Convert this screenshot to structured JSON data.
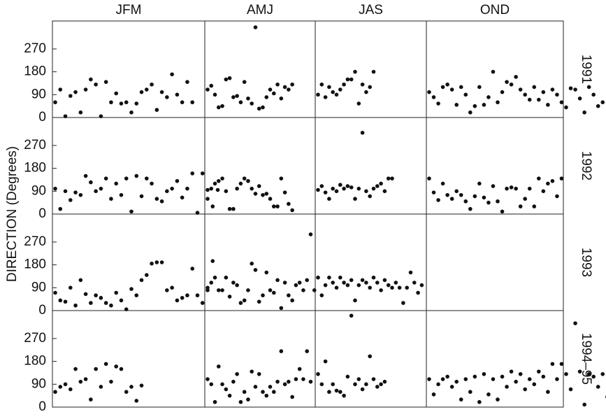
{
  "chart_data": {
    "type": "scatter",
    "columns": [
      "JFM",
      "AMJ",
      "JAS",
      "OND"
    ],
    "rows": [
      "1991",
      "1992",
      "1993",
      "1994–95"
    ],
    "ylabel": "DIRECTION (Degrees)",
    "ylim": [
      0,
      380
    ],
    "yticks": [
      0,
      90,
      180,
      270
    ],
    "color": "#111111",
    "panels": [
      [
        {
          "values": [
            60,
            110,
            5,
            85,
            100,
            20,
            110,
            150,
            130,
            5,
            140,
            60,
            95,
            55,
            60,
            20,
            55,
            100,
            110,
            130,
            30,
            100,
            80,
            170,
            90,
            60,
            140,
            60
          ]
        },
        {
          "values": [
            110,
            125,
            90,
            40,
            45,
            150,
            155,
            80,
            85,
            60,
            140,
            75,
            55,
            355,
            35,
            40,
            80,
            110,
            95,
            130,
            75,
            120,
            110,
            130
          ]
        },
        {
          "values": [
            90,
            130,
            80,
            120,
            100,
            90,
            110,
            130,
            150,
            150,
            180,
            55,
            130,
            100,
            120,
            180
          ]
        },
        {
          "values": [
            100,
            80,
            55,
            120,
            130,
            110,
            50,
            120,
            90,
            20,
            45,
            120,
            50,
            80,
            180,
            60,
            100,
            140,
            130,
            160,
            110,
            90,
            70,
            120,
            70,
            100,
            50,
            110,
            90,
            60,
            40,
            115,
            110,
            75,
            20,
            120,
            90,
            45,
            60
          ]
        }
      ],
      [
        {
          "values": [
            100,
            20,
            90,
            55,
            85,
            75,
            150,
            125,
            90,
            100,
            140,
            60,
            120,
            75,
            140,
            10,
            150,
            70,
            140,
            120,
            60,
            50,
            90,
            100,
            130,
            65,
            100,
            160,
            5,
            160,
            60,
            30,
            95
          ]
        },
        {
          "values": [
            95,
            100,
            120,
            130,
            140,
            90,
            20,
            20,
            100,
            120,
            140,
            130,
            100,
            80,
            110,
            75,
            80,
            60,
            30,
            30,
            140,
            85,
            40,
            15
          ]
        },
        {
          "values": [
            95,
            110,
            85,
            60,
            100,
            90,
            115,
            100,
            110,
            105,
            60,
            100,
            320,
            90,
            70,
            100,
            110,
            120,
            90,
            140,
            140
          ]
        },
        {
          "values": [
            140,
            85,
            55,
            120,
            75,
            60,
            90,
            75,
            50,
            20,
            70,
            120,
            65,
            45,
            110,
            50,
            10,
            100,
            105,
            100,
            30,
            60,
            100,
            30,
            140,
            90,
            120,
            130,
            70,
            140
          ]
        }
      ],
      [
        {
          "values": [
            70,
            40,
            35,
            90,
            20,
            120,
            65,
            30,
            60,
            50,
            30,
            20,
            70,
            40,
            5,
            85,
            60,
            120,
            140,
            185,
            190,
            190,
            80,
            90,
            40,
            50,
            60,
            165,
            60,
            30,
            80,
            195
          ]
        },
        {
          "values": [
            90,
            110,
            130,
            80,
            80,
            130,
            55,
            110,
            100,
            30,
            40,
            80,
            185,
            160,
            35,
            60,
            150,
            80,
            70,
            120,
            10,
            110,
            60,
            40,
            100,
            110,
            80,
            120,
            300,
            80
          ]
        },
        {
          "values": [
            130,
            60,
            100,
            130,
            110,
            90,
            130,
            110,
            100,
            120,
            40,
            100,
            120,
            110,
            90,
            130,
            110,
            80,
            120,
            100,
            90,
            110,
            90,
            30,
            90,
            150,
            110,
            70,
            100
          ]
        },
        {
          "values": []
        }
      ],
      [
        {
          "values": [
            60,
            80,
            90,
            70,
            150,
            100,
            110,
            30,
            150,
            80,
            170,
            100,
            160,
            150,
            60,
            80,
            25,
            85
          ]
        },
        {
          "values": [
            110,
            90,
            20,
            160,
            90,
            70,
            45,
            100,
            130,
            20,
            60,
            30,
            140,
            80,
            130,
            60,
            45,
            80,
            60,
            100,
            220,
            90,
            100,
            40,
            110,
            150,
            110,
            220,
            100
          ]
        },
        {
          "values": [
            130,
            90,
            180,
            60,
            90,
            65,
            60,
            45,
            120,
            360,
            90,
            110,
            70,
            90,
            200,
            110,
            80,
            90,
            100
          ]
        },
        {
          "values": [
            110,
            50,
            90,
            110,
            120,
            80,
            100,
            30,
            110,
            60,
            120,
            20,
            130,
            50,
            110,
            30,
            120,
            80,
            140,
            100,
            130,
            70,
            110,
            90,
            140,
            120,
            60,
            170,
            110,
            170,
            130,
            70,
            330,
            140,
            10,
            130,
            120,
            80,
            130,
            40
          ]
        }
      ]
    ]
  }
}
